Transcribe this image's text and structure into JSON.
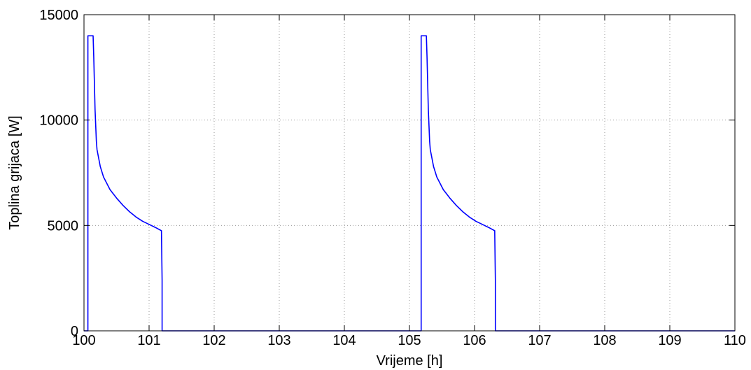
{
  "chart_data": {
    "type": "line",
    "title": "",
    "xlabel": "Vrijeme [h]",
    "ylabel": "Toplina grijaca [W]",
    "xlim": [
      100,
      110
    ],
    "ylim": [
      0,
      15000
    ],
    "xticks": [
      100,
      101,
      102,
      103,
      104,
      105,
      106,
      107,
      108,
      109,
      110
    ],
    "yticks": [
      0,
      5000,
      10000,
      15000
    ],
    "grid": true,
    "series": [
      {
        "color": "#0000ff",
        "x": [
          100,
          100.06,
          100.06,
          100.08,
          100.14,
          100.15,
          100.17,
          100.19,
          100.2,
          100.25,
          100.3,
          100.4,
          100.5,
          100.6,
          100.7,
          100.8,
          100.9,
          101.0,
          101.1,
          101.19,
          101.19,
          101.2,
          101.2,
          101.5,
          102,
          103,
          104,
          105,
          105.18,
          105.18,
          105.2,
          105.26,
          105.27,
          105.29,
          105.31,
          105.32,
          105.37,
          105.42,
          105.52,
          105.62,
          105.72,
          105.82,
          105.92,
          106.02,
          106.12,
          106.22,
          106.31,
          106.31,
          106.32,
          106.32,
          106.6,
          107,
          108,
          109,
          110
        ],
        "y": [
          0,
          0,
          14000,
          14000,
          14000,
          13000,
          10500,
          9000,
          8600,
          7800,
          7300,
          6700,
          6300,
          5950,
          5650,
          5400,
          5200,
          5050,
          4900,
          4750,
          4750,
          2400,
          0,
          0,
          0,
          0,
          0,
          0,
          0,
          14000,
          14000,
          14000,
          13000,
          10500,
          9000,
          8600,
          7800,
          7300,
          6700,
          6300,
          5950,
          5650,
          5400,
          5200,
          5050,
          4900,
          4750,
          4750,
          2400,
          0,
          0,
          0,
          0,
          0,
          0
        ]
      }
    ]
  }
}
